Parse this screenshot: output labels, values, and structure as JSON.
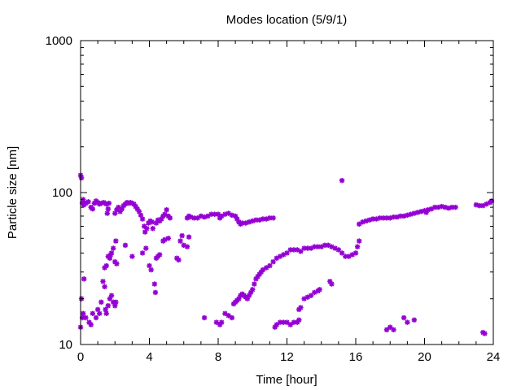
{
  "chart_data": {
    "type": "scatter",
    "title": "Modes location (5/9/1)",
    "xlabel": "Time [hour]",
    "ylabel": "Particle size [nm]",
    "xlim": [
      0,
      24
    ],
    "ylim": [
      10,
      1000
    ],
    "yscale": "log",
    "xticks": [
      0,
      4,
      8,
      12,
      16,
      20,
      24
    ],
    "xtick_labels": [
      "0",
      "4",
      "8",
      "12",
      "16",
      "20",
      "24"
    ],
    "yticks": [
      10,
      100,
      1000
    ],
    "ytick_labels": [
      "10",
      "100",
      "1000"
    ],
    "marker_color": "#9400D3",
    "grid": false,
    "legend": "none",
    "series": [
      {
        "points": [
          [
            0.0,
            130
          ],
          [
            0.05,
            125
          ],
          [
            0.1,
            85
          ],
          [
            0.15,
            90
          ],
          [
            0.2,
            83
          ],
          [
            0.3,
            85
          ],
          [
            0.45,
            87
          ],
          [
            0.6,
            80
          ],
          [
            0.7,
            78
          ],
          [
            0.8,
            85
          ],
          [
            0.9,
            88
          ],
          [
            1.0,
            86
          ],
          [
            1.1,
            84
          ],
          [
            1.2,
            85
          ],
          [
            1.35,
            86
          ],
          [
            1.5,
            84
          ],
          [
            1.65,
            85
          ],
          [
            1.6,
            78
          ],
          [
            1.55,
            73
          ],
          [
            2.0,
            73
          ],
          [
            2.1,
            77
          ],
          [
            2.2,
            80
          ],
          [
            2.3,
            75
          ],
          [
            2.4,
            78
          ],
          [
            2.5,
            82
          ],
          [
            2.6,
            84
          ],
          [
            2.7,
            86
          ],
          [
            2.8,
            85
          ],
          [
            2.9,
            86
          ],
          [
            3.0,
            85
          ],
          [
            3.1,
            84
          ],
          [
            3.2,
            81
          ],
          [
            3.3,
            78
          ],
          [
            3.4,
            75
          ],
          [
            3.5,
            71
          ],
          [
            3.6,
            67
          ],
          [
            3.7,
            60
          ],
          [
            3.75,
            55
          ],
          [
            3.85,
            58
          ],
          [
            3.95,
            63
          ],
          [
            4.05,
            65
          ],
          [
            4.15,
            64
          ],
          [
            4.2,
            58
          ],
          [
            4.4,
            63
          ],
          [
            4.5,
            66
          ],
          [
            4.6,
            65
          ],
          [
            4.7,
            67
          ],
          [
            4.8,
            70
          ],
          [
            4.9,
            72
          ],
          [
            5.0,
            77
          ],
          [
            5.1,
            70
          ],
          [
            5.2,
            68
          ],
          [
            6.2,
            68
          ],
          [
            6.3,
            70
          ],
          [
            6.4,
            69
          ],
          [
            6.6,
            68
          ],
          [
            6.8,
            68
          ],
          [
            7.0,
            70
          ],
          [
            7.2,
            69
          ],
          [
            7.4,
            70
          ],
          [
            7.6,
            72
          ],
          [
            7.8,
            72
          ],
          [
            8.0,
            72
          ],
          [
            8.1,
            68
          ],
          [
            8.2,
            70
          ],
          [
            8.4,
            72
          ],
          [
            8.6,
            73
          ],
          [
            8.8,
            71
          ],
          [
            9.0,
            70
          ],
          [
            9.1,
            67
          ],
          [
            9.2,
            64
          ],
          [
            9.3,
            62
          ],
          [
            9.4,
            63
          ],
          [
            9.6,
            63
          ],
          [
            9.8,
            64
          ],
          [
            10.0,
            65
          ],
          [
            10.2,
            66
          ],
          [
            10.4,
            66
          ],
          [
            10.6,
            67
          ],
          [
            10.8,
            67
          ],
          [
            11.0,
            68
          ],
          [
            11.2,
            68
          ],
          [
            16.2,
            62
          ],
          [
            16.4,
            64
          ],
          [
            16.6,
            65
          ],
          [
            16.8,
            66
          ],
          [
            17.0,
            67
          ],
          [
            17.2,
            67
          ],
          [
            17.4,
            68
          ],
          [
            17.6,
            68
          ],
          [
            17.8,
            68
          ],
          [
            18.0,
            68
          ],
          [
            18.2,
            69
          ],
          [
            18.4,
            69
          ],
          [
            18.6,
            70
          ],
          [
            18.8,
            70
          ],
          [
            19.0,
            71
          ],
          [
            19.2,
            72
          ],
          [
            19.4,
            73
          ],
          [
            19.6,
            74
          ],
          [
            19.8,
            75
          ],
          [
            20.0,
            76
          ],
          [
            20.1,
            74
          ],
          [
            20.2,
            77
          ],
          [
            20.4,
            78
          ],
          [
            20.6,
            80
          ],
          [
            20.8,
            80
          ],
          [
            21.0,
            81
          ],
          [
            21.2,
            80
          ],
          [
            21.4,
            79
          ],
          [
            21.6,
            80
          ],
          [
            21.8,
            80
          ],
          [
            23.0,
            83
          ],
          [
            23.2,
            82
          ],
          [
            23.4,
            82
          ],
          [
            23.6,
            84
          ],
          [
            23.8,
            86
          ],
          [
            23.9,
            88
          ],
          [
            15.2,
            120
          ]
        ]
      },
      {
        "points": [
          [
            0.0,
            13
          ],
          [
            0.05,
            20
          ],
          [
            0.1,
            15
          ],
          [
            0.15,
            16
          ],
          [
            0.2,
            27
          ],
          [
            0.3,
            15
          ],
          [
            0.5,
            14
          ],
          [
            0.6,
            13.5
          ],
          [
            0.7,
            16
          ],
          [
            0.9,
            15
          ],
          [
            1.0,
            17
          ],
          [
            1.1,
            16
          ],
          [
            1.2,
            19
          ],
          [
            1.3,
            26
          ],
          [
            1.4,
            24
          ],
          [
            1.45,
            17
          ],
          [
            1.5,
            16
          ],
          [
            1.6,
            18
          ],
          [
            1.7,
            20
          ],
          [
            1.8,
            21
          ],
          [
            1.9,
            19
          ],
          [
            2.0,
            18
          ],
          [
            2.05,
            19
          ],
          [
            1.4,
            32
          ],
          [
            1.5,
            33
          ],
          [
            1.6,
            38
          ],
          [
            1.7,
            37
          ],
          [
            1.75,
            39
          ],
          [
            1.8,
            40
          ],
          [
            1.9,
            43
          ],
          [
            2.0,
            35
          ],
          [
            2.05,
            48
          ],
          [
            2.1,
            34
          ],
          [
            2.6,
            45
          ],
          [
            3.0,
            38
          ],
          [
            3.6,
            40
          ],
          [
            3.8,
            43
          ],
          [
            4.0,
            33
          ],
          [
            4.1,
            31
          ],
          [
            4.3,
            25
          ],
          [
            4.35,
            22
          ],
          [
            4.4,
            37
          ],
          [
            4.5,
            38
          ],
          [
            4.6,
            39
          ],
          [
            4.8,
            48
          ],
          [
            4.9,
            49
          ],
          [
            5.1,
            50
          ],
          [
            5.6,
            37
          ],
          [
            5.7,
            36
          ],
          [
            5.8,
            48
          ],
          [
            5.9,
            52
          ],
          [
            6.0,
            45
          ],
          [
            6.2,
            44
          ],
          [
            6.3,
            51
          ],
          [
            7.2,
            15
          ],
          [
            7.9,
            14
          ],
          [
            8.1,
            13.5
          ],
          [
            8.2,
            14
          ],
          [
            8.4,
            16
          ],
          [
            8.6,
            15.5
          ],
          [
            8.8,
            15
          ],
          [
            8.9,
            18.5
          ],
          [
            9.0,
            19
          ],
          [
            9.1,
            19.5
          ],
          [
            9.2,
            20
          ],
          [
            9.3,
            21
          ],
          [
            9.4,
            21.5
          ],
          [
            9.5,
            21
          ],
          [
            9.6,
            20.5
          ],
          [
            9.7,
            20
          ],
          [
            9.8,
            21
          ],
          [
            9.9,
            22
          ],
          [
            10.0,
            23
          ],
          [
            10.1,
            25
          ],
          [
            10.2,
            27
          ],
          [
            10.3,
            28
          ],
          [
            10.4,
            29
          ],
          [
            10.5,
            30
          ],
          [
            10.6,
            31
          ],
          [
            10.8,
            32
          ],
          [
            11.0,
            33
          ],
          [
            11.2,
            35
          ],
          [
            11.4,
            37
          ],
          [
            11.6,
            38
          ],
          [
            11.8,
            39
          ],
          [
            12.0,
            40
          ],
          [
            12.2,
            42
          ],
          [
            12.4,
            42
          ],
          [
            12.6,
            42
          ],
          [
            12.8,
            41
          ],
          [
            13.0,
            43
          ],
          [
            13.2,
            43
          ],
          [
            13.4,
            43
          ],
          [
            13.6,
            44
          ],
          [
            13.8,
            44
          ],
          [
            14.0,
            44
          ],
          [
            14.2,
            45
          ],
          [
            14.4,
            45
          ],
          [
            14.6,
            44
          ],
          [
            14.8,
            43
          ],
          [
            15.0,
            42
          ],
          [
            15.2,
            40
          ],
          [
            15.4,
            38
          ],
          [
            15.6,
            38
          ],
          [
            15.8,
            39
          ],
          [
            16.0,
            40
          ],
          [
            16.1,
            44
          ],
          [
            16.2,
            48
          ],
          [
            11.3,
            13
          ],
          [
            11.4,
            13.5
          ],
          [
            11.6,
            14
          ],
          [
            11.8,
            14
          ],
          [
            12.0,
            14
          ],
          [
            12.2,
            13.5
          ],
          [
            12.4,
            14
          ],
          [
            12.6,
            14
          ],
          [
            12.7,
            14.5
          ],
          [
            12.7,
            17
          ],
          [
            12.8,
            17.5
          ],
          [
            13.0,
            20
          ],
          [
            13.2,
            20.5
          ],
          [
            13.4,
            21
          ],
          [
            13.6,
            22
          ],
          [
            13.8,
            22.5
          ],
          [
            13.9,
            23
          ],
          [
            14.5,
            26
          ],
          [
            14.6,
            25
          ],
          [
            17.8,
            12.5
          ],
          [
            18.0,
            13
          ],
          [
            18.2,
            12.5
          ],
          [
            18.8,
            15
          ],
          [
            19.0,
            14
          ],
          [
            19.4,
            14.5
          ],
          [
            23.4,
            12
          ],
          [
            23.5,
            11.8
          ]
        ]
      }
    ]
  }
}
